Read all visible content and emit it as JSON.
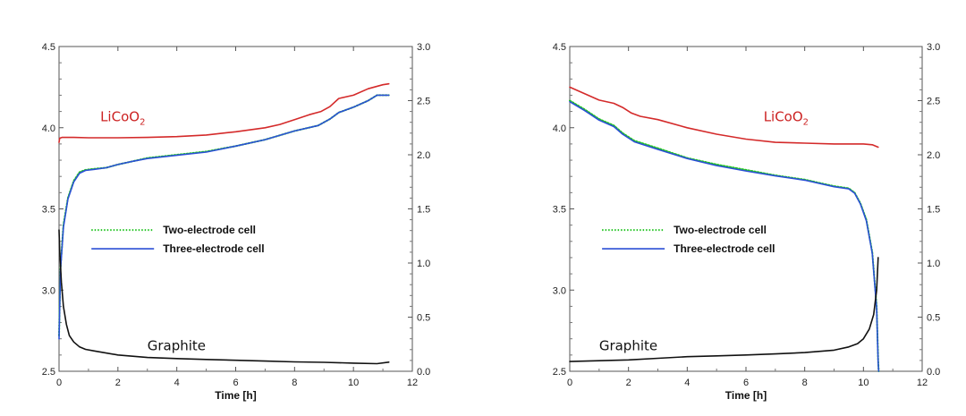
{
  "chart_data": [
    {
      "type": "line",
      "panel": "left",
      "xlabel": "Time [h]",
      "xlim": [
        0,
        12
      ],
      "xticks": [
        0,
        2,
        4,
        6,
        8,
        10,
        12
      ],
      "ylim_left": [
        2.5,
        4.5
      ],
      "yticks_left": [
        "2.5",
        "3.0",
        "3.5",
        "4.0",
        "4.5"
      ],
      "ylim_right": [
        0.0,
        3.0
      ],
      "yticks_right": [
        "0.0",
        "0.5",
        "1.0",
        "1.5",
        "2.0",
        "2.5",
        "3.0"
      ],
      "grid": false,
      "legend": {
        "placement": "center-left",
        "entries": [
          {
            "label": "Two-electrode cell",
            "color": "#22c422",
            "style": "dotted"
          },
          {
            "label": "Three-electrode cell",
            "color": "#2b4fd6",
            "style": "solid"
          }
        ]
      },
      "annotations": [
        {
          "text": "LiCoO",
          "sub": "2",
          "color": "#cc2222",
          "at": [
            1.4,
            4.04
          ]
        },
        {
          "text": "Graphite",
          "color": "#111111",
          "at": [
            3.0,
            2.63
          ]
        }
      ],
      "series": [
        {
          "name": "LiCoO2",
          "axis": "left",
          "color": "#d42a2a",
          "style": "solid",
          "x": [
            0,
            0.02,
            0.1,
            0.5,
            1,
            2,
            3,
            4,
            5,
            6,
            7,
            7.5,
            8,
            8.5,
            8.9,
            9.2,
            9.5,
            10,
            10.5,
            11,
            11.2
          ],
          "y": [
            3.91,
            3.935,
            3.94,
            3.94,
            3.938,
            3.938,
            3.94,
            3.945,
            3.955,
            3.975,
            4.0,
            4.02,
            4.05,
            4.08,
            4.1,
            4.13,
            4.18,
            4.2,
            4.24,
            4.265,
            4.27
          ]
        },
        {
          "name": "Two-electrode cell",
          "axis": "right",
          "color": "#22c422",
          "style": "dotted",
          "x": [
            0,
            0.05,
            0.15,
            0.3,
            0.5,
            0.7,
            0.9,
            1.2,
            1.6,
            2,
            2.5,
            3,
            4,
            5,
            6,
            7,
            8,
            8.8,
            9.2,
            9.5,
            10,
            10.5,
            10.8,
            11.2
          ],
          "y": [
            0.33,
            0.95,
            1.35,
            1.6,
            1.76,
            1.84,
            1.86,
            1.87,
            1.88,
            1.91,
            1.94,
            1.97,
            2.0,
            2.03,
            2.08,
            2.14,
            2.22,
            2.27,
            2.33,
            2.39,
            2.44,
            2.5,
            2.55,
            2.55
          ]
        },
        {
          "name": "Three-electrode cell",
          "axis": "right",
          "color": "#2b4fd6",
          "style": "solid",
          "x": [
            0,
            0.05,
            0.15,
            0.3,
            0.5,
            0.7,
            0.9,
            1.2,
            1.6,
            2,
            2.5,
            3,
            4,
            5,
            6,
            7,
            8,
            8.8,
            9.2,
            9.5,
            10,
            10.5,
            10.8,
            11.2
          ],
          "y": [
            0.3,
            0.93,
            1.33,
            1.59,
            1.75,
            1.83,
            1.855,
            1.865,
            1.88,
            1.91,
            1.94,
            1.965,
            1.995,
            2.025,
            2.08,
            2.14,
            2.22,
            2.27,
            2.33,
            2.39,
            2.44,
            2.5,
            2.55,
            2.55
          ]
        },
        {
          "name": "Graphite",
          "axis": "left",
          "color": "#111111",
          "style": "solid",
          "x": [
            0,
            0.02,
            0.08,
            0.15,
            0.25,
            0.35,
            0.5,
            0.7,
            0.9,
            1.2,
            2,
            3,
            4,
            5,
            6,
            7,
            8,
            9,
            10,
            10.8,
            11.2
          ],
          "y": [
            3.37,
            3.25,
            3.05,
            2.9,
            2.79,
            2.72,
            2.68,
            2.65,
            2.635,
            2.625,
            2.6,
            2.585,
            2.578,
            2.573,
            2.568,
            2.563,
            2.558,
            2.555,
            2.55,
            2.547,
            2.556
          ]
        }
      ]
    },
    {
      "type": "line",
      "panel": "right",
      "xlabel": "Time [h]",
      "xlim": [
        0,
        12
      ],
      "xticks": [
        0,
        2,
        4,
        6,
        8,
        10,
        12
      ],
      "ylim_left": [
        2.5,
        4.5
      ],
      "yticks_left": [
        "2.5",
        "3.0",
        "3.5",
        "4.0",
        "4.5"
      ],
      "ylim_right": [
        0.0,
        3.0
      ],
      "yticks_right": [
        "0.0",
        "0.5",
        "1.0",
        "1.5",
        "2.0",
        "2.5",
        "3.0"
      ],
      "grid": false,
      "legend": {
        "placement": "center-left",
        "entries": [
          {
            "label": "Two-electrode cell",
            "color": "#22c422",
            "style": "dotted"
          },
          {
            "label": "Three-electrode cell",
            "color": "#2b4fd6",
            "style": "solid"
          }
        ]
      },
      "annotations": [
        {
          "text": "LiCoO",
          "sub": "2",
          "color": "#cc2222",
          "at": [
            6.6,
            4.04
          ]
        },
        {
          "text": "Graphite",
          "color": "#111111",
          "at": [
            1.0,
            2.63
          ]
        }
      ],
      "series": [
        {
          "name": "LiCoO2",
          "axis": "left",
          "color": "#d42a2a",
          "style": "solid",
          "x": [
            0,
            0.5,
            1,
            1.5,
            1.8,
            2.1,
            2.4,
            3,
            4,
            5,
            6,
            7,
            8,
            9,
            10,
            10.3,
            10.5
          ],
          "y": [
            4.25,
            4.21,
            4.17,
            4.15,
            4.125,
            4.09,
            4.07,
            4.05,
            4.0,
            3.96,
            3.93,
            3.91,
            3.905,
            3.9,
            3.9,
            3.895,
            3.88
          ]
        },
        {
          "name": "Two-electrode cell",
          "axis": "right",
          "color": "#22c422",
          "style": "dotted",
          "x": [
            0,
            0.5,
            1,
            1.5,
            1.8,
            2.2,
            3,
            4,
            5,
            6,
            7,
            8,
            9,
            9.5,
            9.7,
            9.9,
            10.1,
            10.3,
            10.45,
            10.5,
            10.52
          ],
          "y": [
            2.5,
            2.42,
            2.33,
            2.27,
            2.2,
            2.13,
            2.06,
            1.97,
            1.91,
            1.86,
            1.81,
            1.77,
            1.71,
            1.69,
            1.65,
            1.55,
            1.4,
            1.1,
            0.6,
            0.1,
            0.0
          ]
        },
        {
          "name": "Three-electrode cell",
          "axis": "right",
          "color": "#2b4fd6",
          "style": "solid",
          "x": [
            0,
            0.5,
            1,
            1.5,
            1.8,
            2.2,
            3,
            4,
            5,
            6,
            7,
            8,
            9,
            9.5,
            9.7,
            9.9,
            10.1,
            10.3,
            10.45,
            10.5,
            10.52
          ],
          "y": [
            2.49,
            2.41,
            2.32,
            2.26,
            2.19,
            2.12,
            2.05,
            1.965,
            1.9,
            1.85,
            1.805,
            1.765,
            1.705,
            1.685,
            1.645,
            1.545,
            1.39,
            1.09,
            0.58,
            0.08,
            0.0
          ]
        },
        {
          "name": "Graphite",
          "axis": "left",
          "color": "#111111",
          "style": "solid",
          "x": [
            0,
            1,
            2,
            3,
            4,
            5,
            6,
            7,
            8,
            9,
            9.5,
            9.8,
            10,
            10.2,
            10.35,
            10.45,
            10.5
          ],
          "y": [
            2.56,
            2.565,
            2.57,
            2.58,
            2.59,
            2.595,
            2.6,
            2.607,
            2.615,
            2.63,
            2.65,
            2.67,
            2.7,
            2.76,
            2.85,
            3.0,
            3.2
          ]
        }
      ]
    }
  ]
}
